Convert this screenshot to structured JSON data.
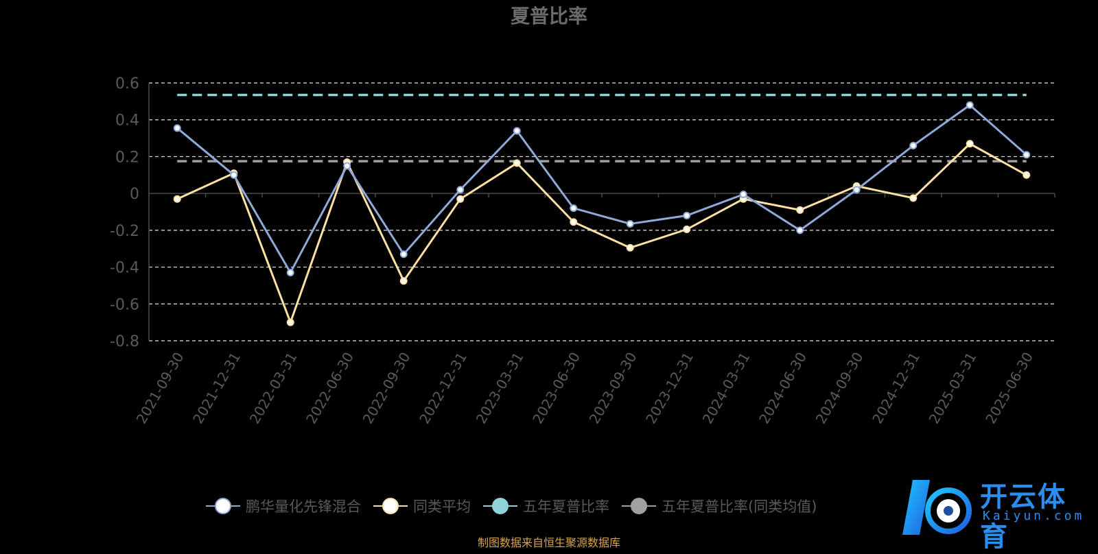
{
  "chart_data": {
    "type": "line",
    "title": "夏普比率",
    "categories": [
      "2021-09-30",
      "2021-12-31",
      "2022-03-31",
      "2022-06-30",
      "2022-09-30",
      "2022-12-31",
      "2023-03-31",
      "2023-06-30",
      "2023-09-30",
      "2023-12-31",
      "2024-03-31",
      "2024-06-30",
      "2024-09-30",
      "2024-12-31",
      "2025-03-31",
      "2025-06-30"
    ],
    "ylim": [
      -0.8,
      0.6
    ],
    "yticks": [
      "0.6",
      "0.4",
      "0.2",
      "0",
      "-0.2",
      "-0.4",
      "-0.6",
      "-0.8"
    ],
    "grid": true,
    "legend_position": "bottom",
    "series": [
      {
        "name": "鹏华量化先锋混合",
        "color": "#8fa9d8",
        "values": [
          0.355,
          0.1,
          -0.43,
          0.15,
          -0.33,
          0.02,
          0.34,
          -0.08,
          -0.165,
          -0.12,
          -0.005,
          -0.2,
          0.02,
          0.26,
          0.48,
          0.21
        ]
      },
      {
        "name": "同类平均",
        "color": "#ffe0a3",
        "values": [
          -0.03,
          0.11,
          -0.7,
          0.17,
          -0.475,
          -0.03,
          0.165,
          -0.155,
          -0.295,
          -0.195,
          -0.03,
          -0.09,
          0.04,
          -0.025,
          0.27,
          0.1
        ]
      },
      {
        "name": "五年夏普比率",
        "color": "#8fd3d9",
        "value": 0.535,
        "style": "dashed"
      },
      {
        "name": "五年夏普比率(同类均值)",
        "color": "#a0a0a0",
        "value": 0.175,
        "style": "dashed"
      }
    ]
  },
  "footer": {
    "source": "制图数据来自恒生聚源数据库"
  },
  "logo": {
    "brand": "开云体育",
    "domain": "Kaiyun.com"
  }
}
